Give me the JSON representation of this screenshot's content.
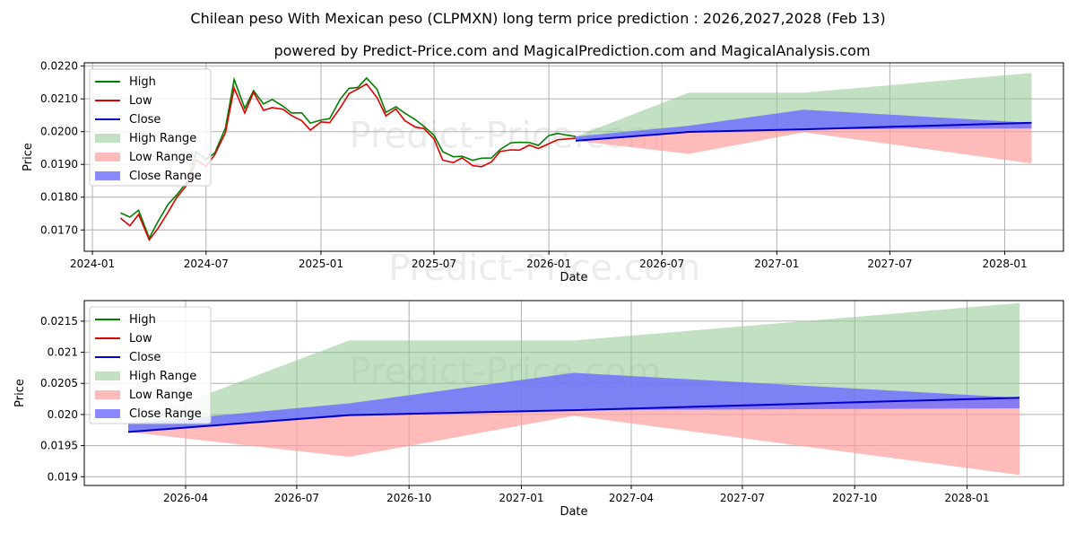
{
  "title": "Chilean peso With Mexican peso (CLPMXN) long term price prediction : 2026,2027,2028 (Feb 13)",
  "subtitle": "powered by Predict-Price.com and MagicalPrediction.com and MagicalAnalysis.com",
  "watermark": "Predict-Price.com",
  "colors": {
    "high": "#008000",
    "low": "#e00000",
    "close": "#0000cc",
    "high_range": "#8fc98f",
    "low_range": "#ff9c9c",
    "close_range": "#6a6aff",
    "grid": "#b0b0b0"
  },
  "legend": {
    "entries": [
      "High",
      "Low",
      "Close",
      "High Range",
      "Low Range",
      "Close Range"
    ]
  },
  "chart_data": [
    {
      "type": "line",
      "name": "overview",
      "xlabel": "Date",
      "ylabel": "Price",
      "xlim": [
        "2023-12-19",
        "2028-04-04"
      ],
      "ylim": [
        0.01635,
        0.0221
      ],
      "x_ticks": [
        {
          "date": "2024-01-01",
          "label": "2024-01"
        },
        {
          "date": "2024-07-01",
          "label": "2024-07"
        },
        {
          "date": "2025-01-01",
          "label": "2025-01"
        },
        {
          "date": "2025-07-01",
          "label": "2025-07"
        },
        {
          "date": "2026-01-01",
          "label": "2026-01"
        },
        {
          "date": "2026-07-01",
          "label": "2026-07"
        },
        {
          "date": "2027-01-01",
          "label": "2027-01"
        },
        {
          "date": "2027-07-01",
          "label": "2027-07"
        },
        {
          "date": "2028-01-01",
          "label": "2028-01"
        }
      ],
      "y_ticks": [
        0.017,
        0.018,
        0.019,
        0.02,
        0.021,
        0.022
      ],
      "grid": true,
      "legend_position": "upper-left",
      "history": {
        "dates": [
          "2024-02-15",
          "2024-03-01",
          "2024-03-15",
          "2024-04-01",
          "2024-04-15",
          "2024-05-01",
          "2024-05-15",
          "2024-06-01",
          "2024-06-15",
          "2024-07-01",
          "2024-07-15",
          "2024-08-01",
          "2024-08-15",
          "2024-09-01",
          "2024-09-15",
          "2024-10-01",
          "2024-10-15",
          "2024-11-01",
          "2024-11-15",
          "2024-12-01",
          "2024-12-15",
          "2025-01-01",
          "2025-01-15",
          "2025-02-01",
          "2025-02-15",
          "2025-03-01",
          "2025-03-15",
          "2025-04-01",
          "2025-04-15",
          "2025-05-01",
          "2025-05-15",
          "2025-06-01",
          "2025-06-15",
          "2025-07-01",
          "2025-07-15",
          "2025-08-01",
          "2025-08-15",
          "2025-09-01",
          "2025-09-15",
          "2025-10-01",
          "2025-10-15",
          "2025-11-01",
          "2025-11-15",
          "2025-12-01",
          "2025-12-15",
          "2026-01-01",
          "2026-01-15",
          "2026-02-13"
        ],
        "close": [
          0.0174,
          0.0172,
          0.0175,
          0.0167,
          0.0171,
          0.0176,
          0.018,
          0.0184,
          0.0192,
          0.019,
          0.0193,
          0.02,
          0.0214,
          0.0206,
          0.0212,
          0.0207,
          0.0208,
          0.0207,
          0.0205,
          0.0204,
          0.0201,
          0.0203,
          0.0203,
          0.0208,
          0.0212,
          0.0213,
          0.0215,
          0.0211,
          0.0205,
          0.0207,
          0.0204,
          0.0202,
          0.0201,
          0.0198,
          0.0192,
          0.0191,
          0.0192,
          0.019,
          0.019,
          0.0191,
          0.0194,
          0.0195,
          0.0195,
          0.0196,
          0.0195,
          0.0197,
          0.0198,
          0.0198
        ],
        "spread": 0.00012
      },
      "forecast": {
        "dates": [
          "2026-02-13",
          "2026-08-13",
          "2027-02-13",
          "2028-02-13"
        ],
        "close": [
          0.01972,
          0.01999,
          0.02007,
          0.02027
        ],
        "high_range": {
          "upper": [
            0.01985,
            0.02119,
            0.02119,
            0.02179
          ],
          "lower": [
            0.01972,
            0.01999,
            0.02007,
            0.02027
          ]
        },
        "low_range": {
          "upper": [
            0.01972,
            0.01999,
            0.02007,
            0.02027
          ],
          "lower": [
            0.01972,
            0.01932,
            0.01998,
            0.01903
          ]
        },
        "close_range": {
          "upper": [
            0.01985,
            0.02018,
            0.02067,
            0.02027
          ],
          "lower": [
            0.01972,
            0.01999,
            0.02007,
            0.0201
          ]
        }
      }
    },
    {
      "type": "line",
      "name": "forecast-detail",
      "xlabel": "Date",
      "ylabel": "Price",
      "xlim": [
        "2026-01-08",
        "2028-03-20"
      ],
      "ylim": [
        0.01886,
        0.02183
      ],
      "x_ticks": [
        {
          "date": "2026-04-01",
          "label": "2026-04"
        },
        {
          "date": "2026-07-01",
          "label": "2026-07"
        },
        {
          "date": "2026-10-01",
          "label": "2026-10"
        },
        {
          "date": "2027-01-01",
          "label": "2027-01"
        },
        {
          "date": "2027-04-01",
          "label": "2027-04"
        },
        {
          "date": "2027-07-01",
          "label": "2027-07"
        },
        {
          "date": "2027-10-01",
          "label": "2027-10"
        },
        {
          "date": "2028-01-01",
          "label": "2028-01"
        }
      ],
      "y_ticks": [
        0.019,
        0.0195,
        0.02,
        0.0205,
        0.021,
        0.0215
      ],
      "grid": true,
      "legend_position": "upper-left",
      "forecast": {
        "dates": [
          "2026-02-13",
          "2026-08-13",
          "2027-02-13",
          "2028-02-13"
        ],
        "close": [
          0.01972,
          0.01999,
          0.02007,
          0.02027
        ],
        "high_range": {
          "upper": [
            0.01985,
            0.02119,
            0.02119,
            0.02179
          ],
          "lower": [
            0.01972,
            0.01999,
            0.02007,
            0.02027
          ]
        },
        "low_range": {
          "upper": [
            0.01972,
            0.01999,
            0.02007,
            0.02027
          ],
          "lower": [
            0.01972,
            0.01932,
            0.01998,
            0.01903
          ]
        },
        "close_range": {
          "upper": [
            0.01985,
            0.02018,
            0.02067,
            0.02027
          ],
          "lower": [
            0.01972,
            0.01999,
            0.02007,
            0.0201
          ]
        }
      }
    }
  ]
}
